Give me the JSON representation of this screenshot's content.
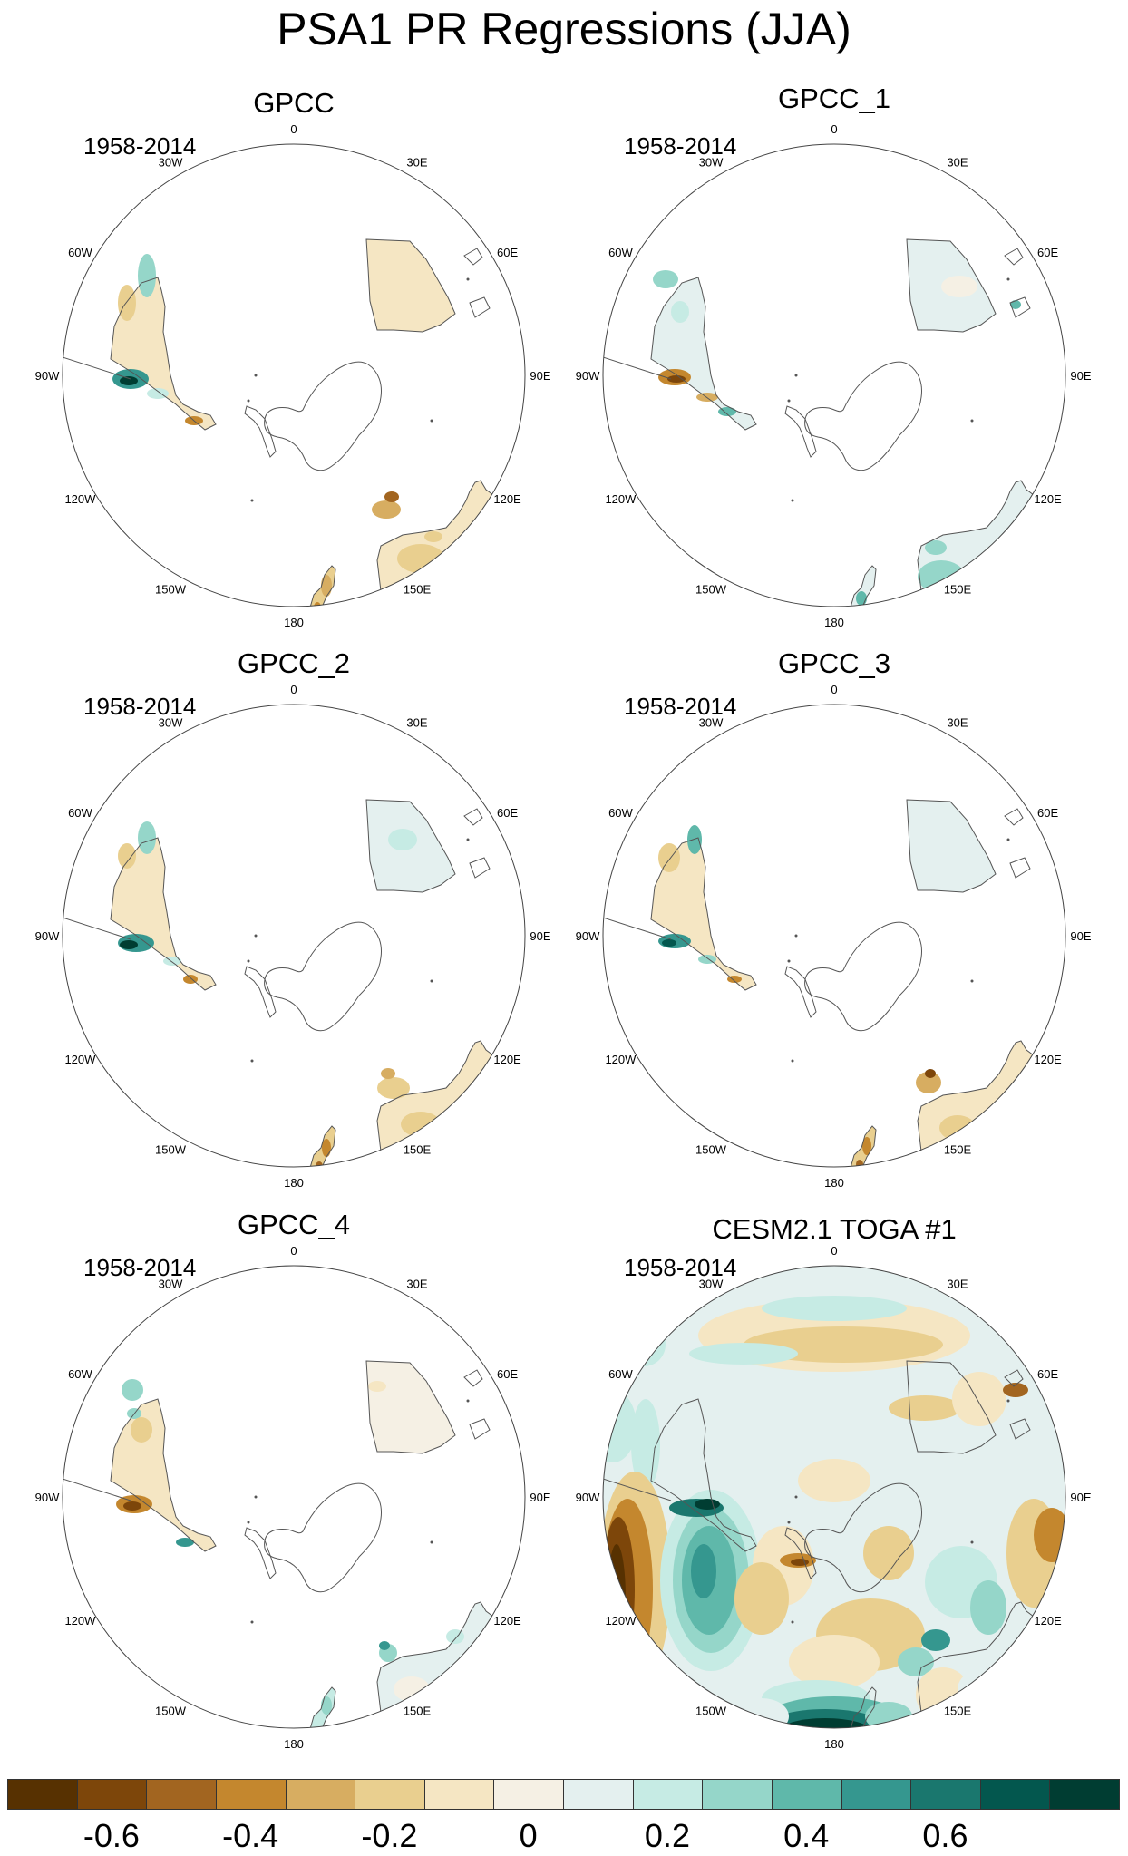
{
  "title": "PSA1 PR Regressions (JJA)",
  "panels": [
    {
      "title": "GPCC",
      "period": "1958-2014",
      "variant": "gpcc"
    },
    {
      "title": "GPCC_1",
      "period": "1958-2014",
      "variant": "gpcc1"
    },
    {
      "title": "GPCC_2",
      "period": "1958-2014",
      "variant": "gpcc2"
    },
    {
      "title": "GPCC_3",
      "period": "1958-2014",
      "variant": "gpcc3"
    },
    {
      "title": "GPCC_4",
      "period": "1958-2014",
      "variant": "gpcc4"
    },
    {
      "title": "CESM2.1 TOGA #1",
      "period": "1958-2014",
      "variant": "cesm"
    }
  ],
  "longitude_labels": [
    "0",
    "30E",
    "60E",
    "90E",
    "120E",
    "150E",
    "180",
    "150W",
    "120W",
    "90W",
    "60W",
    "30W"
  ],
  "colorbar": {
    "colors": [
      "#573101",
      "#7d460a",
      "#a26520",
      "#c4872e",
      "#d7ad61",
      "#e9cf8f",
      "#f5e6c3",
      "#f5f0e4",
      "#e4f0ef",
      "#c6ebe4",
      "#95d6c9",
      "#5fb8aa",
      "#35978f",
      "#1a776e",
      "#03574e",
      "#003d32"
    ],
    "labels": [
      "-0.6",
      "-0.4",
      "-0.2",
      "0",
      "0.2",
      "0.4",
      "0.6"
    ]
  }
}
